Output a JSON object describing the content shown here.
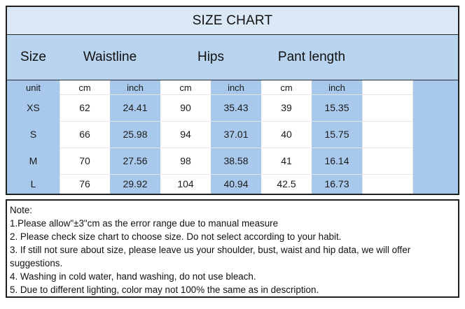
{
  "title": "SIZE CHART",
  "headers": {
    "size": "Size",
    "waistline": "Waistline",
    "hips": "Hips",
    "pant_length": "Pant length"
  },
  "units": [
    "unit",
    "cm",
    "inch",
    "cm",
    "inch",
    "cm",
    "inch"
  ],
  "rows": [
    [
      "XS",
      "62",
      "24.41",
      "90",
      "35.43",
      "39",
      "15.35"
    ],
    [
      "S",
      "66",
      "25.98",
      "94",
      "37.01",
      "40",
      "15.75"
    ],
    [
      "M",
      "70",
      "27.56",
      "98",
      "38.58",
      "41",
      "16.14"
    ],
    [
      "L",
      "76",
      "29.92",
      "104",
      "40.94",
      "42.5",
      "16.73"
    ]
  ],
  "notes": {
    "heading": "Note:",
    "line1": "1.Please allow\"±3\"cm as the error range due to manual measure",
    "line2": "2. Please check size chart to choose size. Do not select according to your habit.",
    "line3": "3. If still not sure about size, please leave us your shoulder, bust, waist and hip data, we will offer suggestions.",
    "line4": "4. Washing in cold water, hand washing, do not use bleach.",
    "line5": "5. Due to different lighting, color may not 100% the same as in description."
  },
  "colors": {
    "title_bg": "#dbe9f7",
    "header_bg": "#b8d4ef",
    "column_blue": "#a9c9ec",
    "border": "#1f1f1f"
  }
}
